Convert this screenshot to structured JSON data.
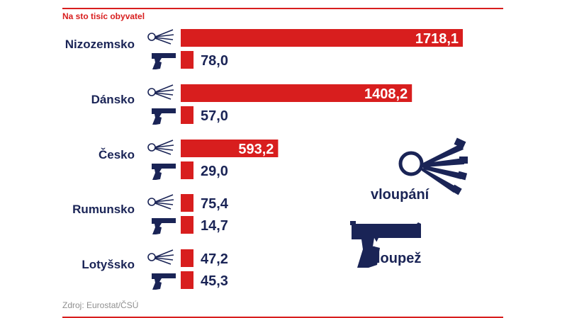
{
  "subtitle": "Na sto tisíc obyvatel",
  "source": "Zdroj: Eurostat/ČSÚ",
  "legend": {
    "burglary_label": "vloupání",
    "robbery_label": "loupež",
    "burglary_icon": "lockpicks-icon",
    "robbery_icon": "pistol-icon"
  },
  "colors": {
    "burglary": "#d81e1e",
    "robbery": "#d81e1e",
    "text": "#1a2456",
    "rule": "#d81e1e",
    "source": "#8f8f8f"
  },
  "chart_data": {
    "type": "bar",
    "orientation": "horizontal",
    "categories": [
      "Nizozemsko",
      "Dánsko",
      "Česko",
      "Rumunsko",
      "Lotyšsko"
    ],
    "series": [
      {
        "name": "vloupání",
        "values": [
          1718.1,
          1408.2,
          593.2,
          75.4,
          47.2
        ],
        "labels": [
          "1718,1",
          "1408,2",
          "593,2",
          "75,4",
          "47,2"
        ]
      },
      {
        "name": "loupež",
        "values": [
          78.0,
          57.0,
          29.0,
          14.7,
          45.3
        ],
        "labels": [
          "78,0",
          "57,0",
          "29,0",
          "14,7",
          "45,3"
        ]
      }
    ],
    "title": "",
    "xlabel": "",
    "ylabel": "",
    "xlim": [
      0,
      1718.1
    ],
    "grid": false,
    "legend_position": "right"
  }
}
